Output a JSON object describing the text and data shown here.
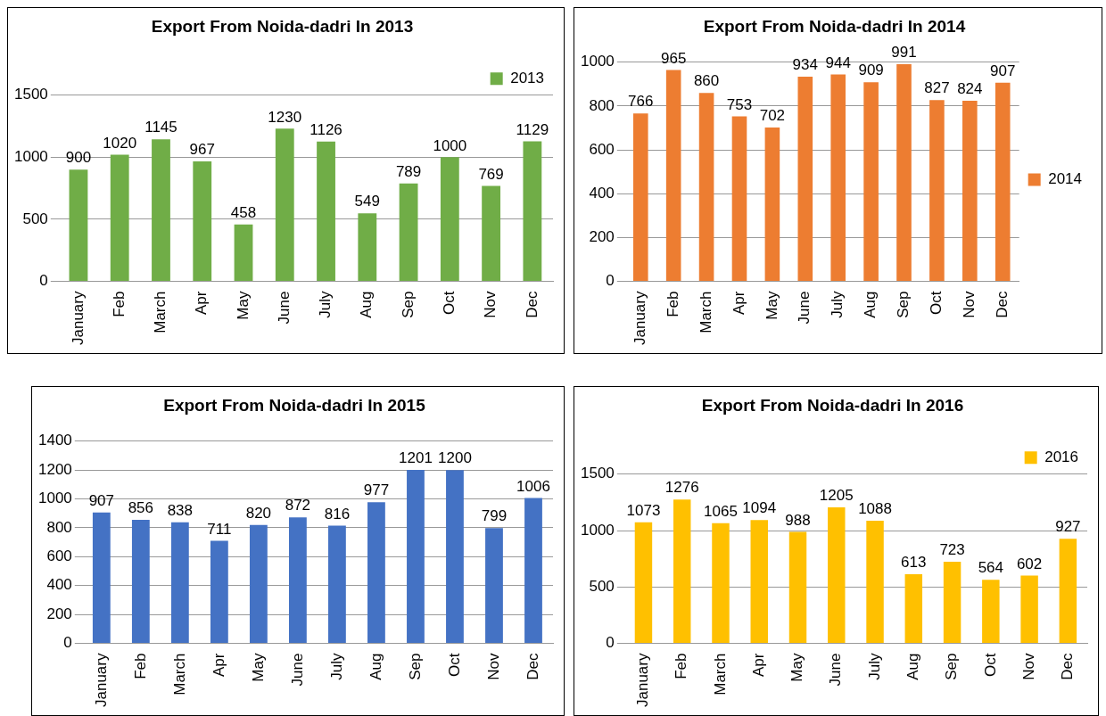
{
  "chart_data": [
    {
      "type": "bar",
      "title": "Export From Noida-dadri In 2013",
      "categories": [
        "January",
        "Feb",
        "March",
        "Apr",
        "May",
        "June",
        "July",
        "Aug",
        "Sep",
        "Oct",
        "Nov",
        "Dec"
      ],
      "series": [
        {
          "name": "2013",
          "color": "#70ad47",
          "values": [
            900,
            1020,
            1145,
            967,
            458,
            1230,
            1126,
            549,
            789,
            1000,
            769,
            1129
          ]
        }
      ],
      "ylim": [
        0,
        1500
      ],
      "yticks": [
        0,
        500,
        1000,
        1500
      ],
      "grid": "y",
      "legend": "top right",
      "data_labels": true
    },
    {
      "type": "bar",
      "title": "Export From Noida-dadri In 2014",
      "categories": [
        "January",
        "Feb",
        "March",
        "Apr",
        "May",
        "June",
        "July",
        "Aug",
        "Sep",
        "Oct",
        "Nov",
        "Dec"
      ],
      "series": [
        {
          "name": "2014",
          "color": "#ed7d31",
          "values": [
            766,
            965,
            860,
            753,
            702,
            934,
            944,
            909,
            991,
            827,
            824,
            907
          ]
        }
      ],
      "ylim": [
        0,
        1000
      ],
      "yticks": [
        0,
        200,
        400,
        600,
        800,
        1000
      ],
      "grid": "y",
      "legend": "right",
      "data_labels": true
    },
    {
      "type": "bar",
      "title": "Export From Noida-dadri In 2015",
      "categories": [
        "January",
        "Feb",
        "March",
        "Apr",
        "May",
        "June",
        "July",
        "Aug",
        "Sep",
        "Oct",
        "Nov",
        "Dec"
      ],
      "series": [
        {
          "color": "#4472c4",
          "values": [
            907,
            856,
            838,
            711,
            820,
            872,
            816,
            977,
            1201,
            1200,
            799,
            1006
          ]
        }
      ],
      "ylim": [
        0,
        1400
      ],
      "yticks": [
        0,
        200,
        400,
        600,
        800,
        1000,
        1200,
        1400
      ],
      "grid": "y",
      "data_labels": true
    },
    {
      "type": "bar",
      "title": "Export From Noida-dadri In 2016",
      "categories": [
        "January",
        "Feb",
        "March",
        "Apr",
        "May",
        "June",
        "July",
        "Aug",
        "Sep",
        "Oct",
        "Nov",
        "Dec"
      ],
      "series": [
        {
          "name": "2016",
          "color": "#ffc000",
          "values": [
            1073,
            1276,
            1065,
            1094,
            988,
            1205,
            1088,
            613,
            723,
            564,
            602,
            927
          ]
        }
      ],
      "ylim": [
        0,
        1500
      ],
      "yticks": [
        0,
        500,
        1000,
        1500
      ],
      "grid": "y",
      "legend": "top right",
      "data_labels": true
    }
  ]
}
